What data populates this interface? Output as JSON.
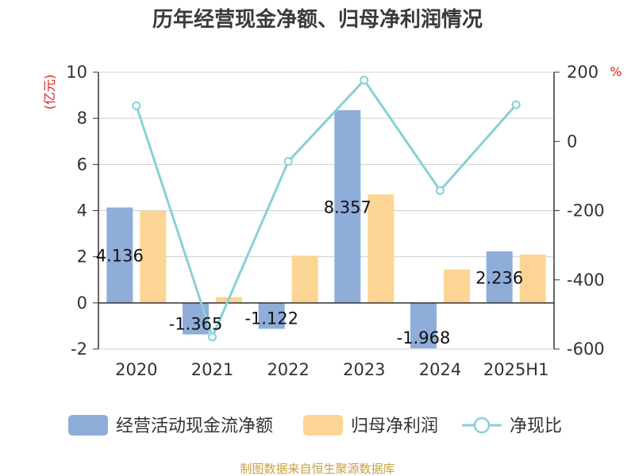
{
  "chart_data": {
    "type": "bar+line",
    "title": "历年经营现金净额、归母净利润情况",
    "categories": [
      "2020",
      "2021",
      "2022",
      "2023",
      "2024",
      "2025H1"
    ],
    "left_axis": {
      "unit": "(亿元)",
      "ylim": [
        -2,
        10
      ],
      "ticks": [
        -2,
        0,
        2,
        4,
        6,
        8,
        10
      ]
    },
    "right_axis": {
      "unit": "%",
      "ylim": [
        -600,
        200
      ],
      "ticks": [
        -600,
        -400,
        -200,
        0,
        200
      ]
    },
    "series": [
      {
        "name": "经营活动现金流净额",
        "type": "bar",
        "axis": "left",
        "color": "#8fadd9",
        "values": [
          4.136,
          -1.365,
          -1.122,
          8.357,
          -1.968,
          2.236
        ],
        "labels": [
          "4.136",
          "-1.365",
          "-1.122",
          "8.357",
          "-1.968",
          "2.236"
        ]
      },
      {
        "name": "归母净利润",
        "type": "bar",
        "axis": "left",
        "color": "#fcd595",
        "values": [
          4.0,
          0.25,
          2.05,
          4.7,
          1.45,
          2.1
        ]
      },
      {
        "name": "净现比",
        "type": "line",
        "axis": "right",
        "color": "#88d0d8",
        "values": [
          103,
          -565,
          -58,
          177,
          -142,
          106
        ]
      }
    ],
    "grid": true,
    "legend_position": "bottom"
  },
  "source": "制图数据来自恒生聚源数据库"
}
